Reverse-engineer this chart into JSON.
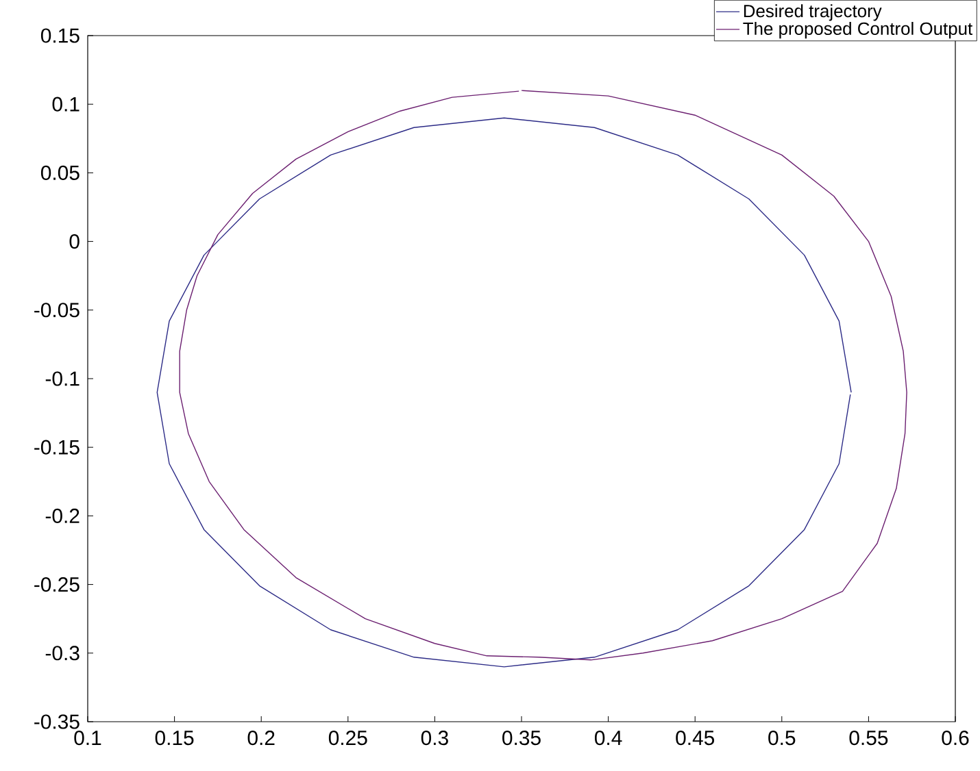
{
  "chart_data": {
    "type": "line",
    "xlim": [
      0.1,
      0.6
    ],
    "ylim": [
      -0.35,
      0.15
    ],
    "xticks": [
      0.1,
      0.15,
      0.2,
      0.25,
      0.3,
      0.35,
      0.4,
      0.45,
      0.5,
      0.55,
      0.6
    ],
    "yticks": [
      -0.35,
      -0.3,
      -0.25,
      -0.2,
      -0.15,
      -0.1,
      -0.05,
      0,
      0.05,
      0.1,
      0.15
    ],
    "legend": "top right",
    "grid": false,
    "marker": "none",
    "line_style": "solid",
    "series": [
      {
        "name": "Desired trajectory",
        "color": "#2b2a86",
        "x": [
          0.54,
          0.533,
          0.513,
          0.481,
          0.44,
          0.392,
          0.34,
          0.288,
          0.24,
          0.199,
          0.167,
          0.147,
          0.14,
          0.147,
          0.167,
          0.199,
          0.24,
          0.288,
          0.34,
          0.392,
          0.44,
          0.481,
          0.513,
          0.533,
          0.5395
        ],
        "values": [
          -0.11,
          -0.058,
          -0.01,
          0.031,
          0.063,
          0.083,
          0.09,
          0.083,
          0.063,
          0.031,
          -0.01,
          -0.058,
          -0.11,
          -0.162,
          -0.21,
          -0.251,
          -0.283,
          -0.303,
          -0.31,
          -0.303,
          -0.283,
          -0.251,
          -0.21,
          -0.162,
          -0.1115
        ]
      },
      {
        "name": "The proposed Control Output",
        "color": "#6b1f70",
        "x": [
          0.35,
          0.4,
          0.45,
          0.5,
          0.53,
          0.55,
          0.563,
          0.57,
          0.572,
          0.571,
          0.566,
          0.555,
          0.535,
          0.5,
          0.46,
          0.42,
          0.39,
          0.36,
          0.33,
          0.3,
          0.26,
          0.22,
          0.19,
          0.17,
          0.158,
          0.153,
          0.153,
          0.157,
          0.163,
          0.175,
          0.195,
          0.22,
          0.25,
          0.28,
          0.31,
          0.3485
        ],
        "values": [
          0.11,
          0.106,
          0.092,
          0.063,
          0.033,
          0.0,
          -0.04,
          -0.08,
          -0.11,
          -0.14,
          -0.18,
          -0.22,
          -0.255,
          -0.275,
          -0.291,
          -0.3,
          -0.305,
          -0.303,
          -0.302,
          -0.293,
          -0.275,
          -0.245,
          -0.21,
          -0.175,
          -0.14,
          -0.11,
          -0.08,
          -0.05,
          -0.025,
          0.005,
          0.035,
          0.06,
          0.08,
          0.095,
          0.105,
          0.1095
        ]
      }
    ]
  }
}
